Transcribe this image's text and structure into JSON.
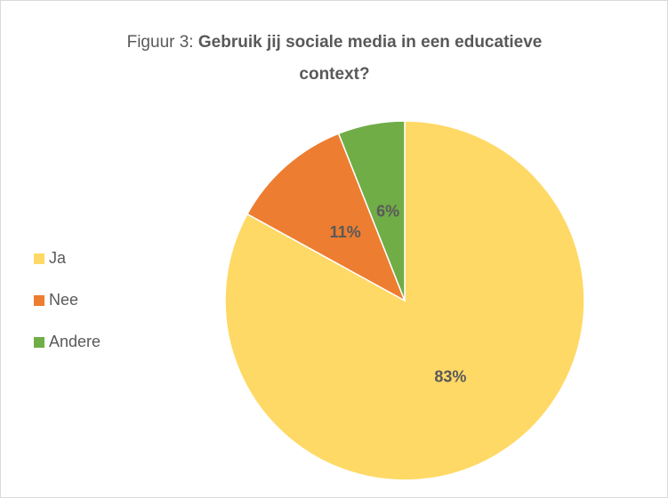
{
  "chart_data": {
    "type": "pie",
    "title_prefix": "Figuur 3:",
    "title": "Gebruik jij sociale media in een educatieve context?",
    "categories": [
      "Ja",
      "Nee",
      "Andere"
    ],
    "values": [
      83,
      11,
      6
    ],
    "value_labels": [
      "83%",
      "11%",
      "6%"
    ],
    "colors": [
      "#ffd966",
      "#ed7d31",
      "#70ad47"
    ],
    "legend": "left"
  }
}
